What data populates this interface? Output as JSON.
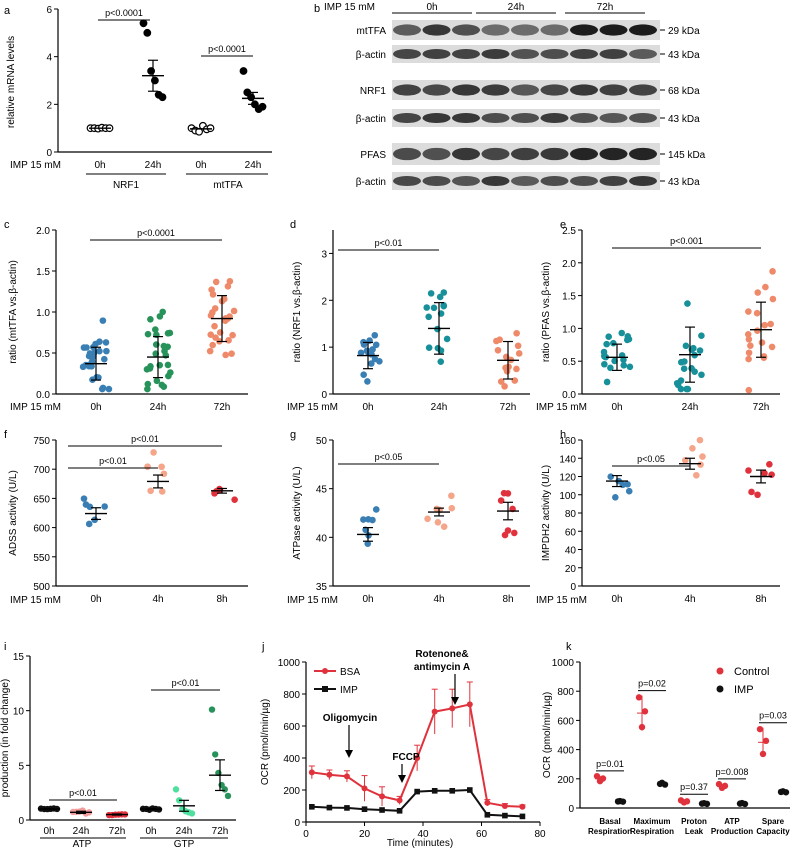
{
  "colors": {
    "blue": "#3a7fb4",
    "green": "#27935a",
    "orange": "#ee8a6a",
    "teal": "#17909a",
    "salmon": "#f4a58a",
    "red": "#e0323c",
    "lightgreen": "#4fe0a0",
    "pink": "#f29c9c",
    "black": "#111111"
  },
  "blot": {
    "letter": "b",
    "treatment_label": "IMP 15 mM",
    "timepoints": [
      "0h",
      "24h",
      "72h"
    ],
    "rows": [
      {
        "label": "mtTFA",
        "size": "29 kDa"
      },
      {
        "label": "β-actin",
        "size": "43 kDa"
      },
      {
        "label": "NRF1",
        "size": "68 kDa"
      },
      {
        "label": "β-actin",
        "size": "43 kDa"
      },
      {
        "label": "PFAS",
        "size": "145 kDa"
      },
      {
        "label": "β-actin",
        "size": "43 kDa"
      }
    ]
  },
  "chart_data": [
    {
      "id": "a",
      "type": "scatter",
      "ylabel": "relative mRNA levels",
      "ylim": [
        0,
        6
      ],
      "yticks": [
        "0",
        "2",
        "4",
        "6"
      ],
      "treatment_label": "IMP 15 mM",
      "groups": [
        {
          "label": "0h",
          "gene": "NRF1",
          "values": [
            1.0,
            1.0,
            0.98,
            1.02,
            1.0,
            1.0
          ],
          "mean": 1.0,
          "sem": 0.02
        },
        {
          "label": "24h",
          "gene": "NRF1",
          "values": [
            5.4,
            5.0,
            3.4,
            3.0,
            2.4,
            2.3
          ],
          "mean": 3.2,
          "sem": 0.65
        },
        {
          "label": "0h",
          "gene": "mtTFA",
          "values": [
            1.0,
            0.9,
            0.85,
            1.1,
            0.95,
            1.0
          ],
          "mean": 0.97,
          "sem": 0.04
        },
        {
          "label": "24h",
          "gene": "mtTFA",
          "values": [
            3.4,
            2.5,
            2.3,
            2.0,
            1.8,
            1.9
          ],
          "mean": 2.25,
          "sem": 0.25
        }
      ],
      "group_names": [
        "NRF1",
        "mtTFA"
      ],
      "annotations": [
        "p<0.0001",
        "p<0.0001"
      ]
    },
    {
      "id": "c",
      "type": "scatter",
      "ylabel": "ratio (mtTFA vs.β-actin)",
      "ylim": [
        0,
        2.0
      ],
      "yticks": [
        "0.0",
        "0.5",
        "1.0",
        "1.5",
        "2.0"
      ],
      "treatment_label": "IMP 15 mM",
      "categories": [
        "0h",
        "24h",
        "72h"
      ],
      "means": [
        0.37,
        0.45,
        0.92
      ],
      "sds": [
        0.2,
        0.25,
        0.28
      ],
      "annotation": "p<0.0001"
    },
    {
      "id": "d",
      "type": "scatter",
      "ylabel": "ratio (NRF1 vs.β-actin)",
      "ylim": [
        0,
        3.5
      ],
      "yticks": [
        "0",
        "1",
        "2",
        "3"
      ],
      "treatment_label": "IMP 15 mM",
      "categories": [
        "0h",
        "24h",
        "72h"
      ],
      "means": [
        0.82,
        1.4,
        0.72
      ],
      "sds": [
        0.28,
        0.55,
        0.4
      ],
      "annotation": "p<0.01"
    },
    {
      "id": "e",
      "type": "scatter",
      "ylabel": "ratio (PFAS vs.β-actin)",
      "ylim": [
        0,
        2.5
      ],
      "yticks": [
        "0.0",
        "0.5",
        "1.0",
        "1.5",
        "2.0",
        "2.5"
      ],
      "treatment_label": "IMP 15 mM",
      "categories": [
        "0h",
        "24h",
        "72h"
      ],
      "means": [
        0.56,
        0.6,
        0.98
      ],
      "sds": [
        0.2,
        0.42,
        0.42
      ],
      "annotation": "p<0.001"
    },
    {
      "id": "f",
      "type": "scatter",
      "ylabel": "ADSS activity (U/L)",
      "ylim": [
        500,
        750
      ],
      "yticks": [
        "500",
        "550",
        "600",
        "650",
        "700",
        "750"
      ],
      "treatment_label": "IMP 15 mM",
      "categories": [
        "0h",
        "4h",
        "8h"
      ],
      "means": [
        624,
        679,
        663
      ],
      "sems": [
        10,
        11,
        4
      ],
      "annotations": [
        "p<0.01",
        "p<0.01"
      ]
    },
    {
      "id": "g",
      "type": "scatter",
      "ylabel": "ATPase activity (U/L)",
      "ylim": [
        35,
        50
      ],
      "yticks": [
        "35",
        "40",
        "45",
        "50"
      ],
      "treatment_label": "IMP 15 mM",
      "categories": [
        "0h",
        "4h",
        "8h"
      ],
      "means": [
        40.3,
        42.6,
        42.7
      ],
      "sems": [
        0.7,
        0.4,
        0.9
      ],
      "annotation": "p<0.05"
    },
    {
      "id": "h",
      "type": "scatter",
      "ylabel": "IMPDH2 activity (U/L)",
      "ylim": [
        0,
        160
      ],
      "yticks": [
        "0",
        "20",
        "40",
        "60",
        "80",
        "100",
        "120",
        "140",
        "160"
      ],
      "treatment_label": "IMP 15 mM",
      "categories": [
        "0h",
        "4h",
        "8h"
      ],
      "means": [
        115,
        134,
        120
      ],
      "sems": [
        6,
        6,
        7
      ],
      "annotation": "p<0.05"
    },
    {
      "id": "i",
      "type": "scatter",
      "ylabel": "production (in fold change)",
      "ylim": [
        0,
        15
      ],
      "yticks": [
        "0",
        "5",
        "10",
        "15"
      ],
      "categories": [
        "0h",
        "24h",
        "72h",
        "0h",
        "24h",
        "72h"
      ],
      "group_names": [
        "ATP",
        "GTP"
      ],
      "means": [
        1.0,
        0.7,
        0.5,
        1.0,
        1.3,
        4.1
      ],
      "sems": [
        0.05,
        0.1,
        0.05,
        0.05,
        0.5,
        1.4
      ],
      "annotations": [
        "p<0.01",
        "p<0.01"
      ]
    },
    {
      "id": "j",
      "type": "line",
      "xlabel": "Time (minutes)",
      "ylabel": "OCR (pmol/min/µg)",
      "xlim": [
        0,
        80
      ],
      "ylim": [
        0,
        1000
      ],
      "xticks": [
        "0",
        "20",
        "40",
        "60",
        "80"
      ],
      "yticks": [
        "0",
        "200",
        "400",
        "600",
        "800",
        "1000"
      ],
      "x": [
        2,
        8,
        14,
        20,
        26,
        32,
        38,
        44,
        50,
        56,
        62,
        68,
        74
      ],
      "series": [
        {
          "name": "BSA",
          "values": [
            310,
            295,
            285,
            210,
            160,
            135,
            400,
            690,
            710,
            735,
            120,
            100,
            95
          ],
          "errors": [
            40,
            30,
            35,
            80,
            60,
            25,
            80,
            140,
            120,
            140,
            20,
            15,
            12
          ]
        },
        {
          "name": "IMP",
          "values": [
            95,
            90,
            88,
            80,
            75,
            70,
            190,
            195,
            195,
            200,
            45,
            40,
            35
          ],
          "errors": [
            5,
            5,
            5,
            5,
            5,
            5,
            8,
            8,
            8,
            8,
            5,
            5,
            5
          ]
        }
      ],
      "annotations": [
        "Oligomycin",
        "FCCP",
        "Rotenone&",
        "antimycin A"
      ]
    },
    {
      "id": "k",
      "type": "scatter",
      "ylabel": "OCR (pmol/min/µg)",
      "ylim": [
        0,
        1000
      ],
      "yticks": [
        "0",
        "200",
        "400",
        "600",
        "800",
        "1000"
      ],
      "categories": [
        "Basal Respiration",
        "Maximum Respiration",
        "Proton Leak",
        "ATP Production",
        "Spare Capacity"
      ],
      "series": [
        {
          "name": "Control",
          "values": [
            200,
            650,
            45,
            150,
            450
          ],
          "errors": [
            20,
            120,
            8,
            15,
            100
          ]
        },
        {
          "name": "IMP",
          "values": [
            45,
            165,
            30,
            30,
            110
          ],
          "errors": [
            5,
            15,
            6,
            8,
            8
          ]
        }
      ],
      "annotations": [
        "p=0.01",
        "p=0.02",
        "p=0.37",
        "p=0.008",
        "p=0.03"
      ]
    }
  ]
}
